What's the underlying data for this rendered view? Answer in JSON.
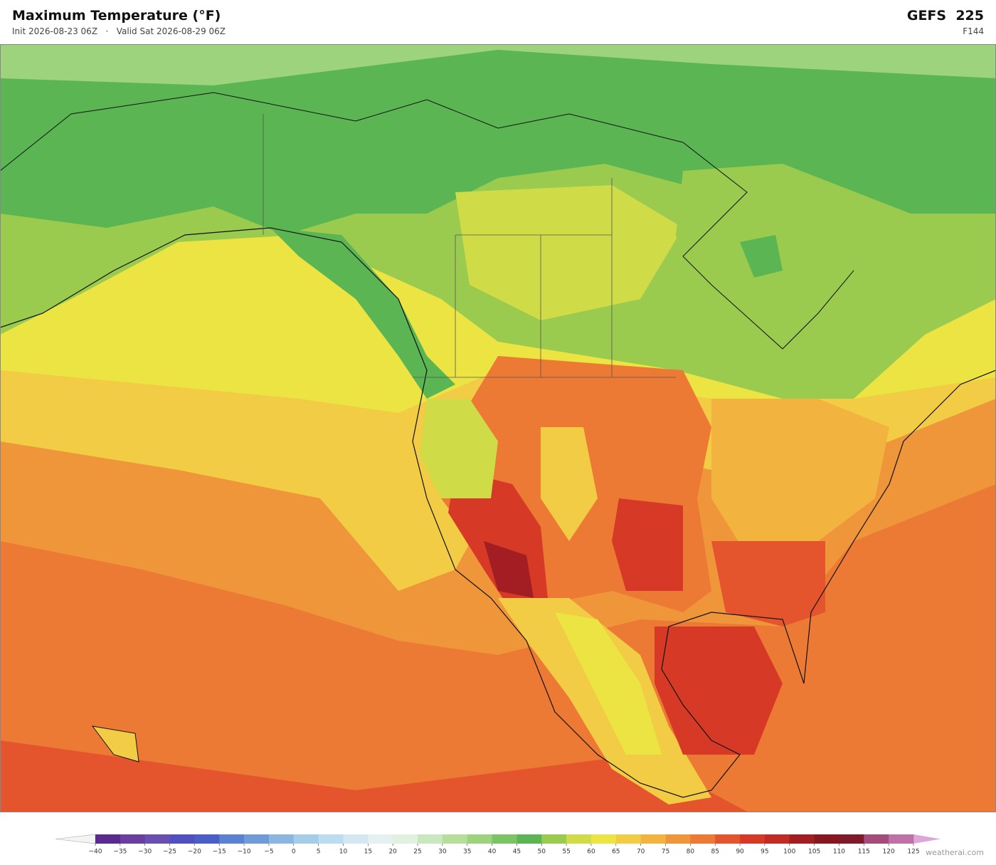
{
  "header": {
    "title": "Maximum Temperature  (°F)",
    "subtitle": "Init 2026-08-23 06Z   ·   Valid Sat 2026-08-29 06Z",
    "model": "GEFS  225",
    "forecast_hour": "F144"
  },
  "colorbar": {
    "ticks": [
      {
        "value": -40,
        "label": "−40"
      },
      {
        "value": -35,
        "label": "−35"
      },
      {
        "value": -30,
        "label": "−30"
      },
      {
        "value": -25,
        "label": "−25"
      },
      {
        "value": -20,
        "label": "−20"
      },
      {
        "value": -15,
        "label": "−15"
      },
      {
        "value": -10,
        "label": "−10"
      },
      {
        "value": -5,
        "label": "−5"
      },
      0,
      5,
      10,
      15,
      20,
      25,
      30,
      35,
      40,
      45,
      50,
      55,
      60,
      65,
      70,
      75,
      80,
      85,
      90,
      95,
      100,
      105,
      110,
      115,
      120,
      125
    ],
    "colors": [
      "#5b2a8e",
      "#6b3fa0",
      "#6a4fb0",
      "#5250c0",
      "#4a5ec8",
      "#5a82d0",
      "#6f9bd8",
      "#8bb6e0",
      "#a3cde8",
      "#bcdcef",
      "#d3e8f3",
      "#e4f1f0",
      "#e0f1df",
      "#c9e8c0",
      "#b5de9a",
      "#9dd37c",
      "#7bc464",
      "#5bb552",
      "#9acb4f",
      "#cfdc48",
      "#ece443",
      "#f3cc45",
      "#f2b43f",
      "#f0963a",
      "#ec7a34",
      "#e5552d",
      "#d63a27",
      "#c22a24",
      "#a21e22",
      "#861620",
      "#7e1a2c",
      "#a54c7c",
      "#c070a8",
      "#d898c8"
    ],
    "under_color": "#f4f4f4",
    "over_color": "#dca6d8"
  },
  "watermark": "weatherai.com"
}
